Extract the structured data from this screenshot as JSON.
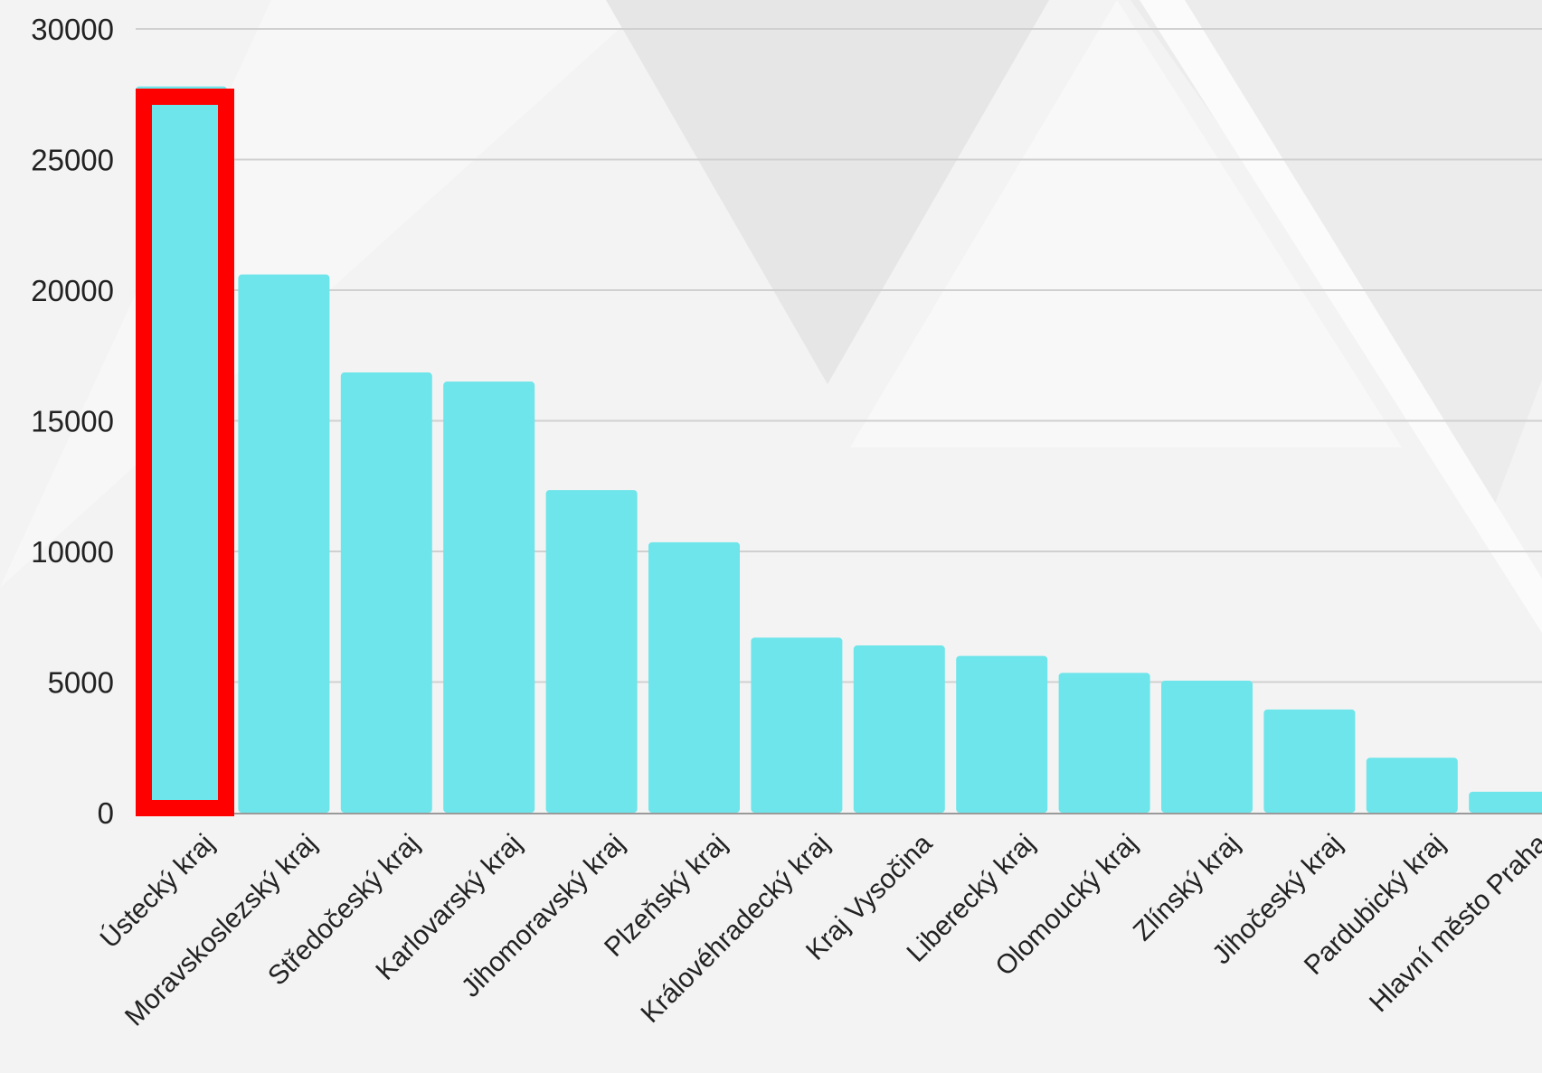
{
  "chart_data": {
    "type": "bar",
    "categories": [
      "Ústecký kraj",
      "Moravskoslezský kraj",
      "Středočeský kraj",
      "Karlovarský kraj",
      "Jihomoravský kraj",
      "Plzeňský kraj",
      "Královéhradecký kraj",
      "Kraj Vysočina",
      "Liberecký kraj",
      "Olomoucký kraj",
      "Zlínský kraj",
      "Jihočeský kraj",
      "Pardubický kraj",
      "Hlavní město Praha"
    ],
    "values": [
      27800,
      20600,
      16850,
      16500,
      12350,
      10350,
      6700,
      6400,
      6000,
      5350,
      5050,
      3950,
      2100,
      800
    ],
    "yticks": [
      0,
      5000,
      10000,
      15000,
      20000,
      25000,
      30000
    ],
    "ylim": [
      0,
      30000
    ],
    "grid": true,
    "highlighted_category": "Ústecký kraj",
    "colors": {
      "bar": "#6de5ea",
      "highlight": "#ff0000",
      "grid": "#d0d0d0",
      "axis": "#9a9a9a",
      "text": "#222222"
    }
  }
}
